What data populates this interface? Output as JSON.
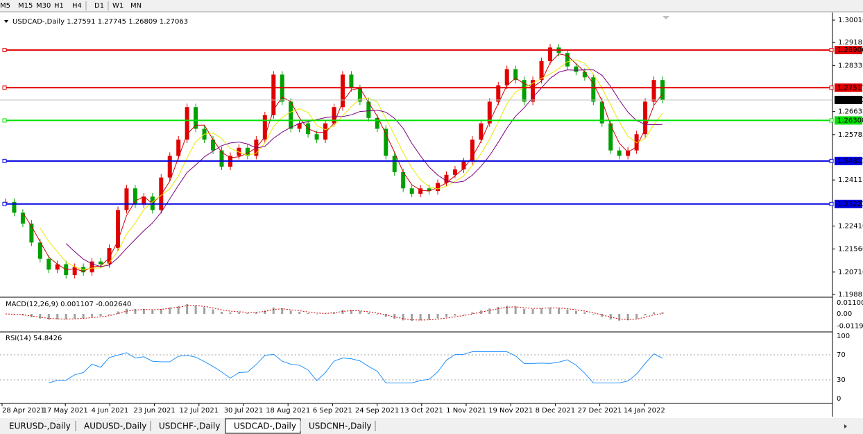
{
  "toolbar": {
    "timeframes": [
      "M5",
      "M15",
      "M30",
      "H1",
      "H4",
      "D1",
      "W1",
      "MN"
    ]
  },
  "chart": {
    "header": "USDCAD-,Daily  1.27591 1.27745 1.26809 1.27063",
    "price_ticks": [
      {
        "value": 1.3001,
        "label": "1.30010"
      },
      1.29185,
      1.28335,
      1.26635,
      1.25785,
      1.2411,
      {
        "value": 1.2241,
        "label": "1.22410"
      },
      {
        "value": 1.2156,
        "label": "1.21560"
      },
      {
        "value": 1.2071,
        "label": "1.20710"
      },
      1.19885
    ],
    "levels": [
      {
        "price": 1.28906,
        "color": "#e00000"
      },
      {
        "price": 1.27517,
        "color": "#e00000"
      },
      {
        "price": 1.26308,
        "color": "#00e000"
      },
      {
        "price": 1.24811,
        "color": "#0000e0"
      },
      {
        "price": 1.23223,
        "color": "#0000e0"
      }
    ],
    "current_price": 1.27063,
    "closes": [
      1.233,
      1.229,
      1.225,
      1.218,
      1.212,
      1.208,
      1.21,
      1.206,
      1.209,
      1.207,
      1.211,
      1.21,
      1.216,
      1.23,
      1.238,
      1.232,
      1.235,
      1.23,
      1.242,
      1.25,
      1.256,
      1.268,
      1.26,
      1.256,
      1.252,
      1.246,
      1.25,
      1.253,
      1.25,
      1.256,
      1.265,
      1.28,
      1.27,
      1.26,
      1.262,
      1.258,
      1.256,
      1.262,
      1.268,
      1.28,
      1.275,
      1.27,
      1.264,
      1.26,
      1.25,
      1.244,
      1.238,
      1.236,
      1.238,
      1.237,
      1.24,
      1.243,
      1.245,
      1.248,
      1.256,
      1.262,
      1.27,
      1.276,
      1.282,
      1.278,
      1.27,
      1.278,
      1.285,
      1.29,
      1.288,
      1.283,
      1.281,
      1.279,
      1.27,
      1.262,
      1.252,
      1.25,
      1.252,
      1.258,
      1.27,
      1.278,
      1.27063
    ],
    "macd": {
      "header": "MACD(12,26,9) 0.001107 -0.002640",
      "ticks": [
        {
          "value": 0.011009,
          "label": "0.011009"
        },
        {
          "value": 0,
          "label": "0.00"
        },
        {
          "value": -0.011908,
          "label": "-0.011908"
        }
      ]
    },
    "rsi": {
      "header": "RSI(14) 54.8426",
      "ticks": [
        100,
        70,
        30,
        0
      ]
    },
    "dates": [
      "28 Apr 2021",
      "17 May 2021",
      "4 Jun 2021",
      "23 Jun 2021",
      "12 Jul 2021",
      "30 Jul 2021",
      "18 Aug 2021",
      "6 Sep 2021",
      "24 Sep 2021",
      "13 Oct 2021",
      "1 Nov 2021",
      "19 Nov 2021",
      "8 Dec 2021",
      "27 Dec 2021",
      "14 Jan 2022"
    ]
  },
  "tabs": [
    {
      "label": "EURUSD-,Daily",
      "active": false
    },
    {
      "label": "AUDUSD-,Daily",
      "active": false
    },
    {
      "label": "USDCHF-,Daily",
      "active": false
    },
    {
      "label": "USDCAD-,Daily",
      "active": true
    },
    {
      "label": "USDCNH-,Daily",
      "active": false
    }
  ]
}
